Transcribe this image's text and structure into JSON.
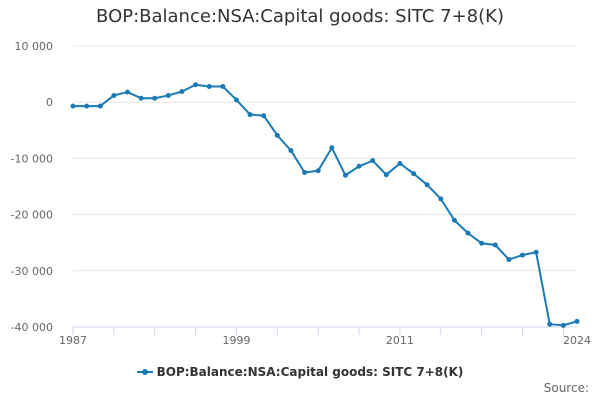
{
  "chart_data": {
    "type": "line",
    "title": "BOP:Balance:NSA:Capital goods: SITC 7+8(K)",
    "xlabel": "",
    "ylabel": "",
    "xlim": [
      1987,
      2024
    ],
    "ylim": [
      -40000,
      10000
    ],
    "y_ticks": [
      {
        "value": 10000,
        "label": "10 000"
      },
      {
        "value": 0,
        "label": "0"
      },
      {
        "value": -10000,
        "label": "-10 000"
      },
      {
        "value": -20000,
        "label": "-20 000"
      },
      {
        "value": -30000,
        "label": "-30 000"
      },
      {
        "value": -40000,
        "label": "-40 000"
      }
    ],
    "x_ticks": [
      {
        "value": 1987,
        "label": "1987"
      },
      {
        "value": 1999,
        "label": "1999"
      },
      {
        "value": 2011,
        "label": "2011"
      },
      {
        "value": 2024,
        "label": "2024"
      }
    ],
    "grid": true,
    "legend_position": "bottom",
    "series": [
      {
        "name": "BOP:Balance:NSA:Capital goods: SITC 7+8(K)",
        "color": "#1a7ab5",
        "x": [
          1987,
          1988,
          1989,
          1990,
          1991,
          1992,
          1993,
          1994,
          1995,
          1996,
          1997,
          1998,
          1999,
          2000,
          2001,
          2002,
          2003,
          2004,
          2005,
          2006,
          2007,
          2008,
          2009,
          2010,
          2011,
          2012,
          2013,
          2014,
          2015,
          2016,
          2017,
          2018,
          2019,
          2020,
          2021,
          2022,
          2023,
          2024
        ],
        "y": [
          -700,
          -700,
          -700,
          1200,
          1800,
          700,
          700,
          1200,
          1900,
          3100,
          2800,
          2800,
          400,
          -2200,
          -2400,
          -5900,
          -8600,
          -12500,
          -12200,
          -8100,
          -13000,
          -11400,
          -10400,
          -12900,
          -10900,
          -12700,
          -14700,
          -17200,
          -21000,
          -23300,
          -25100,
          -25400,
          -28000,
          -27200,
          -26700,
          -39500,
          -39700,
          -39000
        ]
      }
    ]
  },
  "source_label": "Source:"
}
